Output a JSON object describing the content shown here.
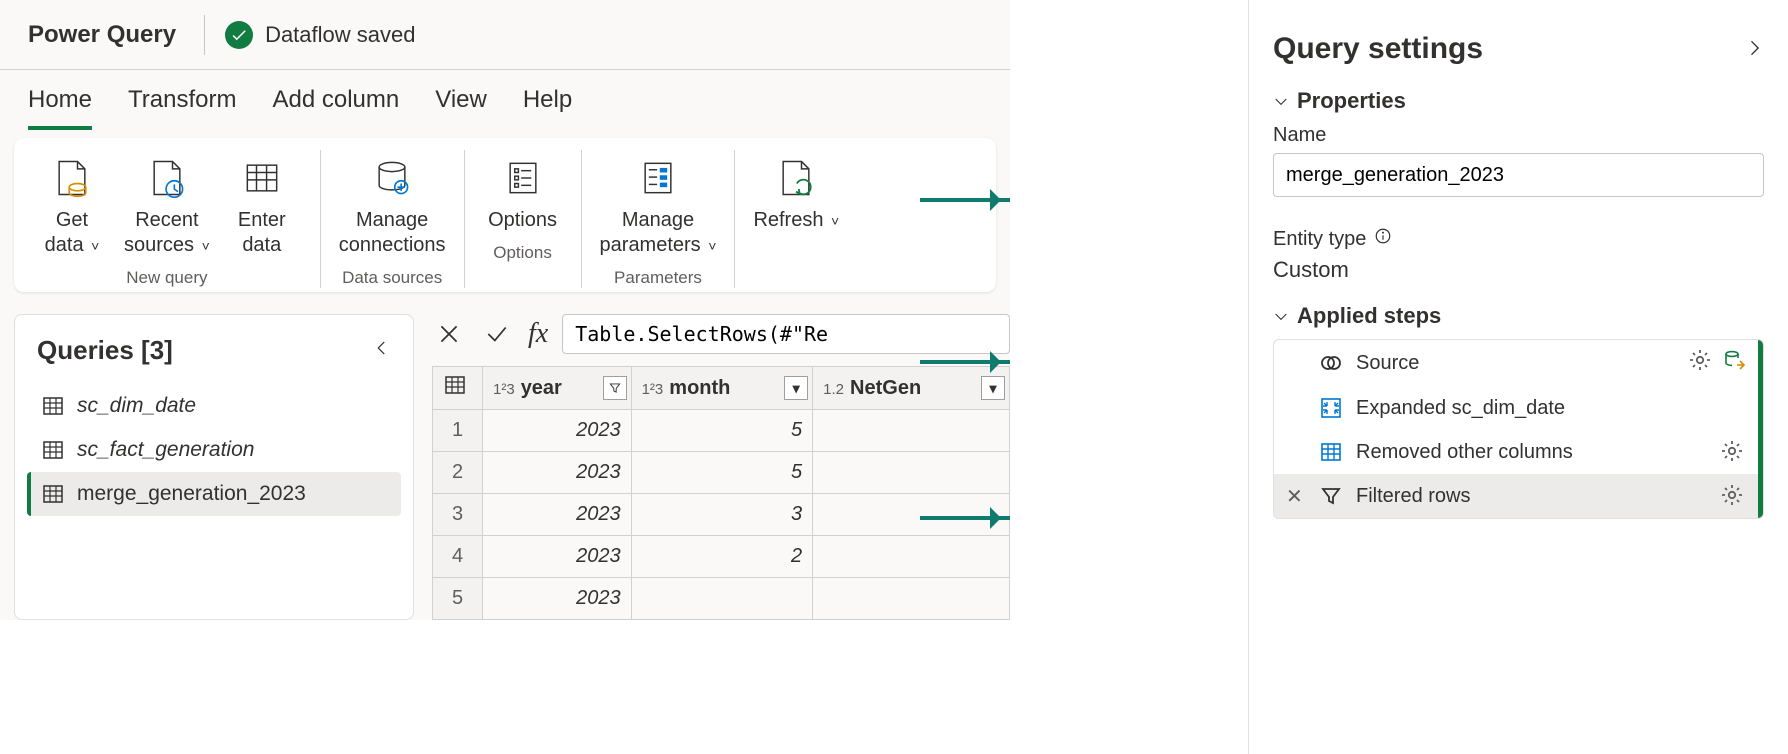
{
  "colors": {
    "accent": "#107c41",
    "arrow": "#0f7b6c",
    "border": "#d1d1d1",
    "panel_bg": "#faf9f8"
  },
  "title_bar": {
    "app_name": "Power Query",
    "status_text": "Dataflow saved"
  },
  "ribbon": {
    "tabs": [
      "Home",
      "Transform",
      "Add column",
      "View",
      "Help"
    ],
    "active_tab_index": 0,
    "groups": [
      {
        "label": "New query",
        "buttons": [
          {
            "name": "get-data",
            "label_line1": "Get",
            "label_line2": "data",
            "chev": true
          },
          {
            "name": "recent-sources",
            "label_line1": "Recent",
            "label_line2": "sources",
            "chev": true
          },
          {
            "name": "enter-data",
            "label_line1": "Enter",
            "label_line2": "data",
            "chev": false
          }
        ]
      },
      {
        "label": "Data sources",
        "buttons": [
          {
            "name": "manage-connections",
            "label_line1": "Manage",
            "label_line2": "connections",
            "chev": false
          }
        ]
      },
      {
        "label": "Options",
        "buttons": [
          {
            "name": "options",
            "label_line1": "Options",
            "label_line2": "",
            "chev": false
          }
        ]
      },
      {
        "label": "Parameters",
        "buttons": [
          {
            "name": "manage-parameters",
            "label_line1": "Manage",
            "label_line2": "parameters",
            "chev": true
          }
        ]
      },
      {
        "label": "",
        "buttons": [
          {
            "name": "refresh",
            "label_line1": "Refresh",
            "label_line2": "",
            "chev": true
          }
        ]
      }
    ]
  },
  "queries_panel": {
    "title": "Queries [3]",
    "items": [
      {
        "label": "sc_dim_date",
        "italic": true,
        "selected": false
      },
      {
        "label": "sc_fact_generation",
        "italic": true,
        "selected": false
      },
      {
        "label": "merge_generation_2023",
        "italic": false,
        "selected": true
      }
    ]
  },
  "formula_bar": {
    "formula": "Table.SelectRows(#\"Re"
  },
  "data_grid": {
    "columns": [
      {
        "label": "year",
        "type": "1²3",
        "filter": true
      },
      {
        "label": "month",
        "type": "1²3",
        "filter": false
      },
      {
        "label": "NetGen",
        "type": "1.2",
        "filter": false
      }
    ],
    "rows": [
      {
        "n": 1,
        "year": "2023",
        "month": "5"
      },
      {
        "n": 2,
        "year": "2023",
        "month": "5"
      },
      {
        "n": 3,
        "year": "2023",
        "month": "3"
      },
      {
        "n": 4,
        "year": "2023",
        "month": "2"
      },
      {
        "n": 5,
        "year": "2023",
        "month": ""
      }
    ]
  },
  "settings_pane": {
    "title": "Query settings",
    "properties_label": "Properties",
    "name_label": "Name",
    "name_value": "merge_generation_2023",
    "entity_type_label": "Entity type",
    "entity_type_value": "Custom",
    "applied_steps_label": "Applied steps",
    "steps": [
      {
        "label": "Source",
        "icon": "source",
        "gear": true,
        "extra_icon": true,
        "selected": false
      },
      {
        "label": "Expanded sc_dim_date",
        "icon": "expand",
        "gear": false,
        "extra_icon": false,
        "selected": false
      },
      {
        "label": "Removed other columns",
        "icon": "table",
        "gear": true,
        "extra_icon": false,
        "selected": false
      },
      {
        "label": "Filtered rows",
        "icon": "filter",
        "gear": true,
        "extra_icon": false,
        "selected": true
      }
    ]
  }
}
